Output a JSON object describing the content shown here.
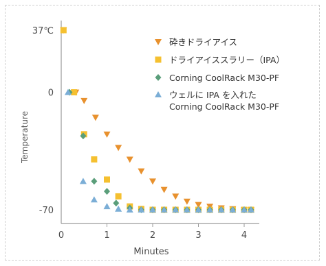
{
  "chart_data": {
    "type": "scatter",
    "xlabel": "Minutes",
    "ylabel": "Temperature",
    "xlim": [
      0,
      4.3
    ],
    "ylim": [
      -73,
      40
    ],
    "x_ticks": [
      0,
      1,
      2,
      3,
      4
    ],
    "y_ticks": [
      {
        "value": 37,
        "label": "37℃"
      },
      {
        "value": 0,
        "label": "0"
      },
      {
        "value": -70,
        "label": "-70"
      }
    ],
    "grid": false,
    "legend_position": "top-right",
    "series": [
      {
        "name": "砕きドライアイス",
        "marker": "triangle-down",
        "color": "#e8912e",
        "x": [
          0.05,
          0.32,
          0.5,
          0.75,
          1.0,
          1.25,
          1.5,
          1.75,
          2.0,
          2.25,
          2.5,
          2.75,
          3.0,
          3.25,
          3.5,
          3.75,
          4.0,
          4.15
        ],
        "y": [
          37,
          0,
          -5,
          -15,
          -25,
          -33,
          -40,
          -47,
          -53,
          -58,
          -62,
          -65,
          -67,
          -68,
          -69,
          -69.5,
          -70,
          -70
        ]
      },
      {
        "name": "ドライアイススラリー（IPA）",
        "marker": "square",
        "color": "#f5c030",
        "x": [
          0.05,
          0.28,
          0.5,
          0.72,
          1.0,
          1.25,
          1.5,
          1.75,
          2.0,
          2.25,
          2.5,
          2.75,
          3.0,
          3.25,
          3.5,
          3.75,
          4.0,
          4.15
        ],
        "y": [
          37,
          0,
          -25,
          -40,
          -52,
          -62,
          -68,
          -69.5,
          -70,
          -70,
          -70,
          -70,
          -70,
          -70,
          -70,
          -70,
          -70,
          -70
        ]
      },
      {
        "name": "Corning CoolRack M30-PF",
        "marker": "diamond",
        "color": "#5a9e7a",
        "x": [
          0.18,
          0.48,
          0.72,
          1.0,
          1.2,
          1.5,
          1.75,
          2.0,
          2.25,
          2.5,
          2.75,
          3.0,
          3.25,
          3.5,
          3.75,
          4.0,
          4.15
        ],
        "y": [
          0,
          -26,
          -53,
          -59,
          -66,
          -69,
          -70,
          -70,
          -70,
          -70,
          -70,
          -70,
          -70,
          -70,
          -70,
          -70,
          -70
        ]
      },
      {
        "name": "ウェルに IPA を入れた Corning CoolRack M30-PF",
        "legend_lines": [
          "ウェルに IPA を入れた",
          "Corning CoolRack M30-PF"
        ],
        "marker": "triangle-up",
        "color": "#7baed6",
        "x": [
          0.15,
          0.48,
          0.72,
          1.0,
          1.25,
          1.5,
          1.75,
          2.0,
          2.25,
          2.5,
          2.75,
          3.0,
          3.25,
          3.5,
          3.75,
          4.0,
          4.15
        ],
        "y": [
          0,
          -53,
          -64,
          -68,
          -69.5,
          -70,
          -70,
          -70,
          -70,
          -70,
          -70,
          -70,
          -70,
          -70,
          -70,
          -70,
          -70
        ]
      }
    ]
  }
}
